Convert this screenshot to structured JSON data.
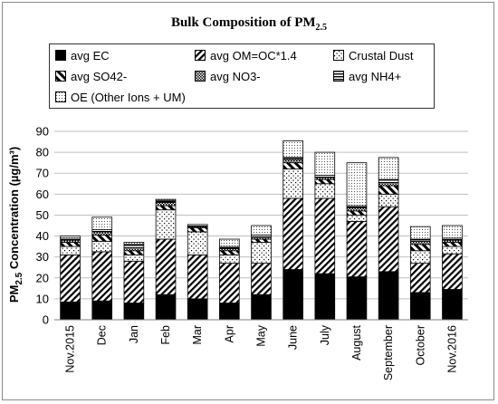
{
  "chart_data": {
    "type": "bar",
    "stacked": true,
    "title_main": "Bulk Composition of PM",
    "title_sub": "2.5",
    "ylabel_main": "PM",
    "ylabel_sub": "2.5",
    "ylabel_rest": " Concentration (µg/m³)",
    "ylim": [
      0,
      90
    ],
    "yticks": [
      0,
      10,
      20,
      30,
      40,
      50,
      60,
      70,
      80,
      90
    ],
    "grid": true,
    "legend_position": "top",
    "categories": [
      "Nov.2015",
      "Dec",
      "Jan",
      "Feb",
      "Mar",
      "Apr",
      "May",
      "June",
      "July",
      "August",
      "September",
      "October",
      "Nov.2016"
    ],
    "series": [
      {
        "name": "avg EC",
        "pattern": "solid-black",
        "values": [
          8.5,
          9,
          8,
          12,
          10,
          8,
          12,
          24,
          22,
          20.5,
          23,
          13,
          14.5
        ]
      },
      {
        "name": "avg OM=OC*1.4",
        "pattern": "diagonal-stripes",
        "values": [
          22.5,
          23.5,
          20,
          26.5,
          21,
          19,
          15,
          34,
          36,
          26.5,
          31,
          14,
          17
        ]
      },
      {
        "name": "Crustal Dust",
        "pattern": "dots",
        "values": [
          4,
          5,
          3,
          14,
          11,
          4,
          10,
          14,
          7,
          3,
          6,
          6,
          3.5
        ]
      },
      {
        "name": "avg SO42-",
        "pattern": "bold-diagonal",
        "values": [
          2,
          3,
          2,
          2,
          2,
          2,
          1.5,
          3,
          2,
          2,
          4,
          3,
          2
        ]
      },
      {
        "name": "avg NO3-",
        "pattern": "checker",
        "values": [
          1,
          1.5,
          1.5,
          1.5,
          0.5,
          1,
          1,
          1.5,
          1,
          1.5,
          1.5,
          1.5,
          1
        ]
      },
      {
        "name": "avg NH4+",
        "pattern": "horizontal-stripes",
        "values": [
          1,
          1,
          1.5,
          1,
          1,
          1,
          1,
          1,
          1,
          1,
          1.5,
          1,
          1
        ]
      },
      {
        "name": "OE (Other Ions + UM)",
        "pattern": "fine-dots",
        "values": [
          1,
          6,
          1,
          0.5,
          0,
          3.5,
          4.5,
          8,
          11,
          20.5,
          10.5,
          6,
          6
        ]
      }
    ]
  }
}
